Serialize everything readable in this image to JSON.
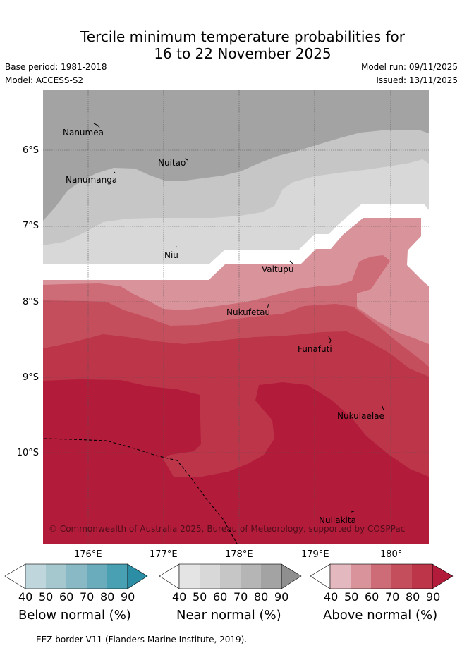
{
  "header": {
    "title_line1": "Tercile minimum temperature probabilities for",
    "title_line2": "16 to 22 November 2025",
    "base_period": "Base period: 1981-2018",
    "model": "Model: ACCESS-S2",
    "model_run": "Model run: 09/11/2025",
    "issued": "Issued: 13/11/2025"
  },
  "map": {
    "islands": [
      "Nanumea",
      "Nuitao",
      "Nanumanga",
      "Niu",
      "Vaitupu",
      "Nukufetau",
      "Funafuti",
      "Nukulaelae",
      "Nuilakita"
    ],
    "attribution": "© Commonwealth of Australia 2025, Bureau of Meteorology, supported by COSPPac",
    "lat_labels": [
      "6°S",
      "7°S",
      "8°S",
      "9°S",
      "10°S"
    ],
    "lon_labels": [
      "176°E",
      "177°E",
      "178°E",
      "179°E",
      "180°"
    ],
    "colors": {
      "near_80": "#a3a3a3",
      "near_60": "#c6c6c6",
      "near_50": "#d8d8d8",
      "above_50": "#d9939b",
      "above_60": "#cd6b77",
      "above_70": "#c44e5c",
      "above_80": "#bc3549",
      "above_90": "#b21c3a"
    }
  },
  "colorbars": [
    {
      "name": "below",
      "title": "Below normal (%)",
      "ticks": [
        "40",
        "50",
        "60",
        "70",
        "80",
        "90"
      ],
      "colors": [
        "#bfd6dc",
        "#a5c7ce",
        "#88b9c4",
        "#6aacbc",
        "#48a0b2",
        "#2b8ea5"
      ]
    },
    {
      "name": "near",
      "title": "Near normal (%)",
      "ticks": [
        "40",
        "50",
        "60",
        "70",
        "80",
        "90"
      ],
      "colors": [
        "#e4e4e4",
        "#d8d8d8",
        "#c6c6c6",
        "#b5b5b5",
        "#a3a3a3",
        "#8f8f8f"
      ]
    },
    {
      "name": "above",
      "title": "Above normal (%)",
      "ticks": [
        "40",
        "50",
        "60",
        "70",
        "80",
        "90"
      ],
      "colors": [
        "#e4b8bf",
        "#d9939b",
        "#cd6b77",
        "#c44e5c",
        "#bc3549",
        "#b21c3a"
      ]
    }
  ],
  "footer": {
    "eez_note": "--  --  -- EEZ border V11 (Flanders Marine Institute, 2019)."
  }
}
